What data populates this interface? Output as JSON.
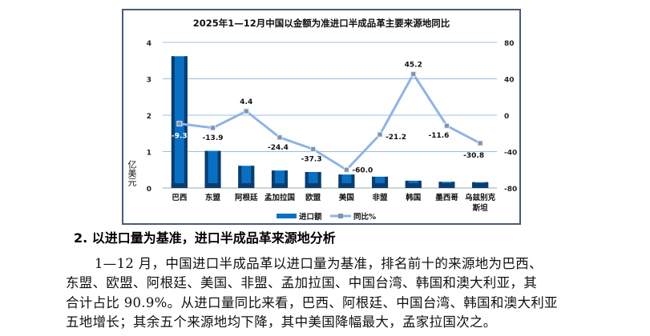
{
  "chart_data": {
    "type": "bar+line",
    "title": "2025年1—12月中国以金额为准进口半成品革主要来源地同比",
    "ylabel": "亿美元",
    "categories": [
      "巴西",
      "东盟",
      "阿根廷",
      "孟加拉国",
      "欧盟",
      "美国",
      "非盟",
      "韩国",
      "墨西哥",
      "乌兹别克斯坦"
    ],
    "category_lines": [
      [
        "巴西"
      ],
      [
        "东盟"
      ],
      [
        "阿根廷"
      ],
      [
        "孟加拉国"
      ],
      [
        "欧盟"
      ],
      [
        "美国"
      ],
      [
        "非盟"
      ],
      [
        "韩国"
      ],
      [
        "墨西哥"
      ],
      [
        "乌兹别克",
        "斯坦"
      ]
    ],
    "series": [
      {
        "name": "进口额",
        "type": "bar",
        "axis": "left",
        "values": [
          3.62,
          1.02,
          0.61,
          0.48,
          0.44,
          0.37,
          0.31,
          0.2,
          0.17,
          0.16
        ]
      },
      {
        "name": "同比%",
        "type": "line",
        "axis": "right",
        "values": [
          -9.3,
          -13.9,
          4.4,
          -24.4,
          -37.3,
          -60.0,
          -21.2,
          45.2,
          -11.6,
          -30.8
        ],
        "labels": [
          "-9.3",
          "-13.9",
          "4.4",
          "-24.4",
          "-37.3",
          "-60.0",
          "-21.2",
          "45.2",
          "-11.6",
          "-30.8"
        ]
      }
    ],
    "ylim_left": [
      0,
      4
    ],
    "yticks_left": [
      "0",
      "1",
      "2",
      "3",
      "4"
    ],
    "ylim_right": [
      -80,
      80
    ],
    "yticks_right": [
      "-80",
      "-40",
      "0",
      "40",
      "80"
    ],
    "grid": true,
    "legend": "bottom",
    "colors": {
      "bar": "#0a6fc2",
      "bar_dark": "#0b3d6e",
      "line": "#8fb4e3",
      "grid": "#9dbce4"
    }
  },
  "text": {
    "heading": "2. 以进口量为基准，进口半成品革来源地分析",
    "lines": [
      "1—12 月，中国进口半成品革以进口量为基准，排名前十的来源地为巴西、",
      "东盟、欧盟、阿根廷、美国、非盟、孟加拉国、中国台湾、韩国和澳大利亚，其",
      "合计占比 90.9%。从进口量同比来看，巴西、阿根廷、中国台湾、韩国和澳大利亚",
      "五地增长；其余五个来源地均下降，其中美国降幅最大，孟家拉国次之。"
    ]
  }
}
